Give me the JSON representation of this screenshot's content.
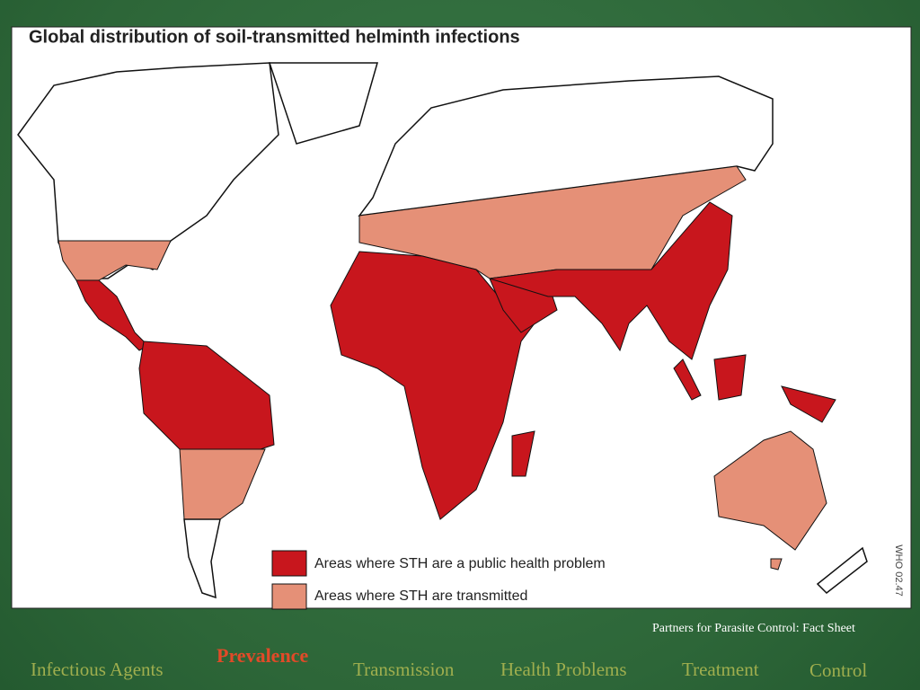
{
  "map": {
    "title": "Global distribution of soil-transmitted helminth infections",
    "legend": [
      "Areas where STH are a public health problem",
      "Areas where STH are transmitted"
    ],
    "code": "WHO 02.47"
  },
  "caption": "Partners for Parasite Control: Fact Sheet",
  "nav": {
    "items": [
      "Infectious Agents",
      "Prevalence",
      "Transmission",
      "Health Problems",
      "Treatment",
      "Control"
    ],
    "active": 1
  }
}
